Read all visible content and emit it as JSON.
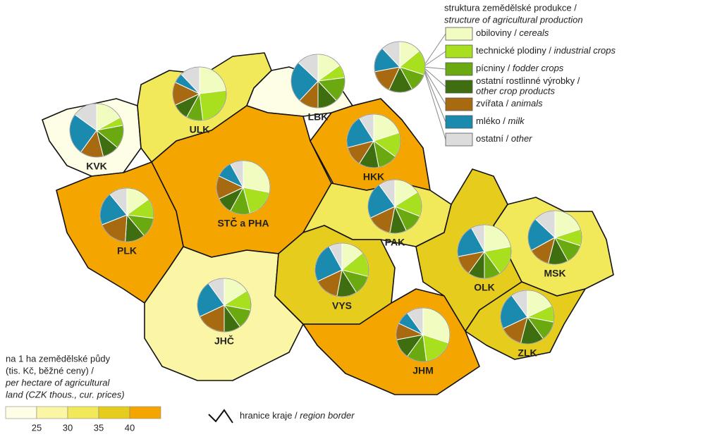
{
  "legend": {
    "title": "struktura zemědělské produkce /",
    "title_en": "structure of agricultural production",
    "items": [
      {
        "name": "obiloviny / ",
        "name_en": "cereals",
        "color": "#f0fcc0"
      },
      {
        "name": "technické plodiny / ",
        "name_en": "industrial crops",
        "color": "#a8e020"
      },
      {
        "name": "pícniny / ",
        "name_en": "fodder crops",
        "color": "#6aaa10"
      },
      {
        "name": "ostatní rostlinné výrobky /",
        "name_en": "other crop products",
        "color": "#3e6e10"
      },
      {
        "name": "zvířata / ",
        "name_en": "animals",
        "color": "#a86a10"
      },
      {
        "name": "mléko / ",
        "name_en": "milk",
        "color": "#1a8aae"
      },
      {
        "name": "ostatní / ",
        "name_en": "other",
        "color": "#dcdcdc"
      }
    ],
    "sample_values": [
      14,
      16,
      12,
      15,
      15,
      16,
      12
    ]
  },
  "scale": {
    "title_lines": [
      "na 1 ha zemědělské půdy",
      "(tis. Kč, běžné ceny) /"
    ],
    "title_en_lines": [
      "per hectare of agricultural",
      "land (CZK thous., cur. prices)"
    ],
    "colors": [
      "#fefde6",
      "#fbf6a6",
      "#f2e95a",
      "#e6cc1c",
      "#f5a500"
    ],
    "ticks": [
      25,
      30,
      35,
      40
    ]
  },
  "border_legend": {
    "name": "hranice kraje / ",
    "name_en": "region border"
  },
  "regions": [
    {
      "label": "KVK",
      "color": "#fefde6",
      "values": [
        17,
        5,
        14,
        10,
        14,
        25,
        15
      ]
    },
    {
      "label": "ULK",
      "color": "#f2e95a",
      "values": [
        23,
        25,
        10,
        10,
        14,
        6,
        12
      ]
    },
    {
      "label": "LBK",
      "color": "#fefde6",
      "values": [
        15,
        8,
        15,
        12,
        12,
        25,
        13
      ]
    },
    {
      "label": "STČ a PHA",
      "color": "#f5a500",
      "values": [
        28,
        18,
        12,
        10,
        14,
        10,
        8
      ]
    },
    {
      "label": "HKK",
      "color": "#f5a500",
      "values": [
        20,
        15,
        12,
        12,
        12,
        20,
        9
      ]
    },
    {
      "label": "PLK",
      "color": "#f2e95a",
      "values": [
        15,
        12,
        12,
        12,
        18,
        20,
        11
      ]
    },
    {
      "label": "PAK",
      "color": "#f5a500",
      "values": [
        16,
        15,
        12,
        10,
        15,
        22,
        10
      ]
    },
    {
      "label": "JHČ",
      "color": "#fbf6a6",
      "values": [
        16,
        12,
        12,
        10,
        18,
        22,
        10
      ]
    },
    {
      "label": "VYS",
      "color": "#e6cc1c",
      "values": [
        14,
        15,
        12,
        12,
        15,
        24,
        8
      ]
    },
    {
      "label": "JHM",
      "color": "#f5a500",
      "values": [
        30,
        18,
        12,
        12,
        10,
        8,
        10
      ]
    },
    {
      "label": "OLK",
      "color": "#e6cc1c",
      "values": [
        22,
        18,
        10,
        10,
        12,
        20,
        8
      ]
    },
    {
      "label": "MSK",
      "color": "#f2e95a",
      "values": [
        20,
        10,
        12,
        12,
        13,
        20,
        13
      ]
    },
    {
      "label": "ZLK",
      "color": "#e6cc1c",
      "values": [
        18,
        10,
        12,
        14,
        14,
        22,
        10
      ]
    }
  ]
}
